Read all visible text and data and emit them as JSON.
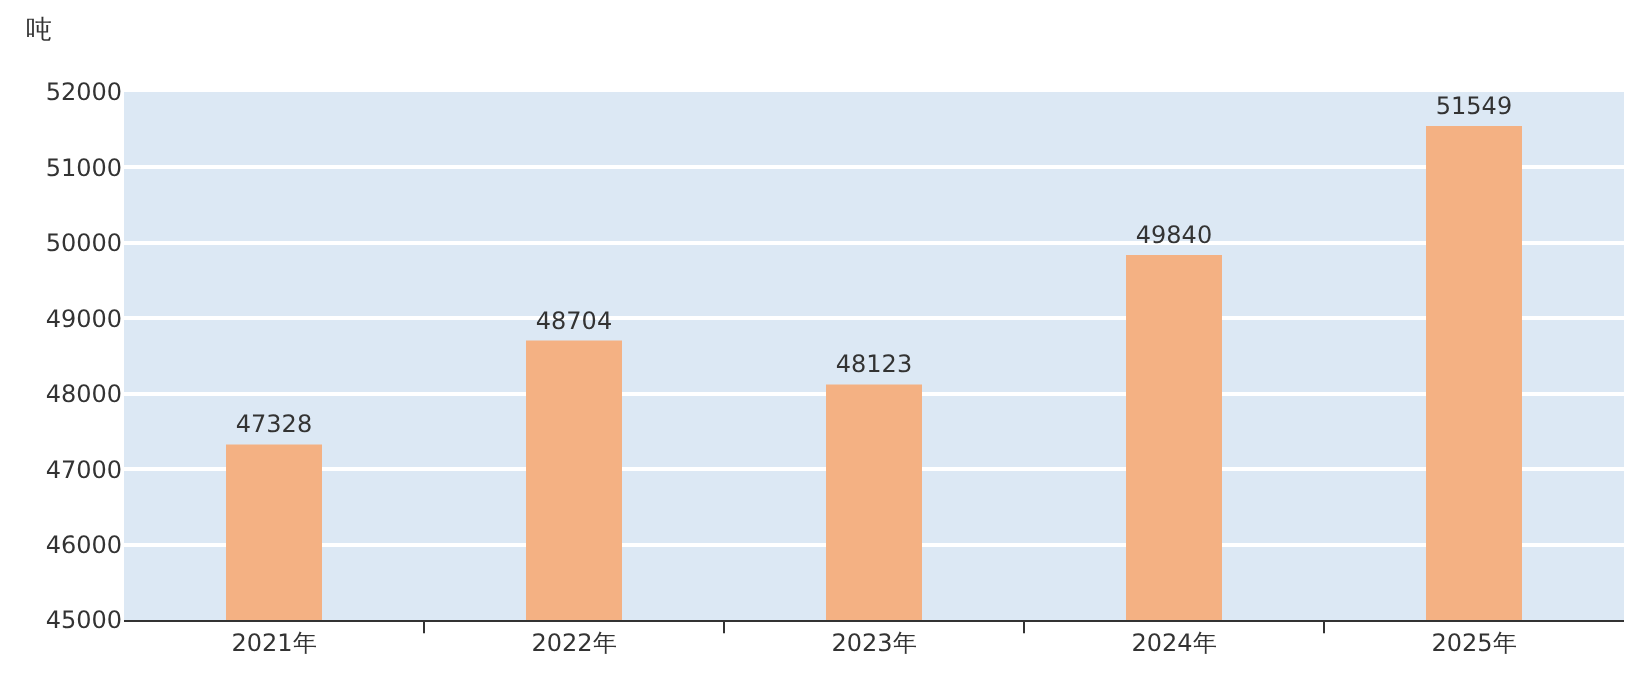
{
  "chart_data": {
    "type": "bar",
    "ylabel": "吨",
    "categories": [
      "2021年",
      "2022年",
      "2023年",
      "2024年",
      "2025年"
    ],
    "values": [
      47328,
      48704,
      48123,
      49840,
      51549
    ],
    "color": "#f4b183",
    "ylim": [
      45000,
      52000
    ],
    "yticks": [
      45000,
      46000,
      47000,
      48000,
      49000,
      50000,
      51000,
      52000
    ],
    "grid": "y",
    "data_labels": true,
    "legend": false
  }
}
